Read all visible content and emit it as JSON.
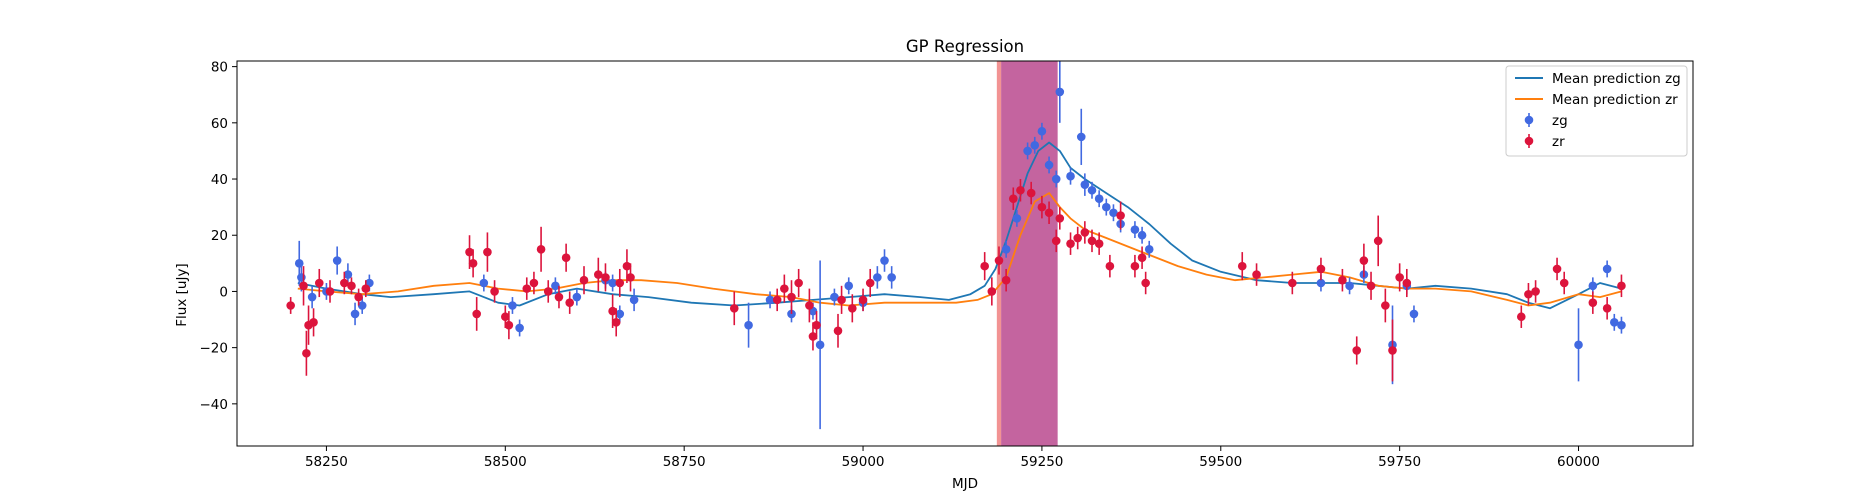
{
  "chart_data": {
    "type": "scatter",
    "title": "GP Regression",
    "xlabel": "MJD",
    "ylabel": "Flux [uJy]",
    "xlim": [
      58125,
      60160
    ],
    "ylim": [
      -55,
      82
    ],
    "xticks": [
      58250,
      58500,
      58750,
      59000,
      59250,
      59500,
      59750,
      60000
    ],
    "yticks": [
      -40,
      -20,
      0,
      20,
      40,
      60,
      80
    ],
    "grid": false,
    "legend_position": "top-right",
    "legend": [
      {
        "label": "Mean prediction zg",
        "kind": "line",
        "color": "#1f77b4"
      },
      {
        "label": "Mean prediction zr",
        "kind": "line",
        "color": "#ff7f0e"
      },
      {
        "label": "zg",
        "kind": "errorbar",
        "color": "#4169e1"
      },
      {
        "label": "zr",
        "kind": "errorbar",
        "color": "#dc143c"
      }
    ],
    "shaded_regions": [
      {
        "x0": 59187,
        "x1": 59193,
        "color": "#f08080",
        "opacity": 0.85
      },
      {
        "x0": 59193,
        "x1": 59272,
        "color": "#b0307f",
        "opacity": 0.75
      }
    ],
    "series": [
      {
        "name": "Mean prediction zg",
        "kind": "line",
        "color": "#1f77b4",
        "x": [
          58210,
          58250,
          58300,
          58340,
          58400,
          58450,
          58490,
          58520,
          58560,
          58600,
          58650,
          58700,
          58760,
          58820,
          58880,
          58930,
          58980,
          59030,
          59080,
          59120,
          59150,
          59170,
          59185,
          59200,
          59215,
          59230,
          59245,
          59260,
          59275,
          59290,
          59310,
          59340,
          59370,
          59400,
          59430,
          59460,
          59500,
          59550,
          59600,
          59640,
          59680,
          59720,
          59760,
          59800,
          59850,
          59900,
          59930,
          59960,
          60000,
          60030,
          60060
        ],
        "y": [
          3,
          1,
          -1,
          -2,
          -1,
          0,
          -4,
          -5,
          -1,
          1,
          -1,
          -2,
          -4,
          -5,
          -4,
          -3,
          -2,
          -1,
          -2,
          -3,
          -1,
          2,
          8,
          18,
          30,
          42,
          50,
          53,
          50,
          44,
          40,
          35,
          30,
          24,
          17,
          11,
          7,
          4,
          3,
          3,
          3,
          2,
          1,
          2,
          1,
          -1,
          -4,
          -6,
          -1,
          3,
          1
        ]
      },
      {
        "name": "Mean prediction zr",
        "kind": "line",
        "color": "#ff7f0e",
        "x": [
          58210,
          58250,
          58300,
          58350,
          58400,
          58450,
          58490,
          58530,
          58570,
          58610,
          58650,
          58690,
          58740,
          58790,
          58850,
          58900,
          58940,
          58980,
          59030,
          59080,
          59130,
          59160,
          59180,
          59200,
          59220,
          59240,
          59260,
          59275,
          59290,
          59310,
          59340,
          59370,
          59400,
          59440,
          59480,
          59520,
          59560,
          59600,
          59640,
          59680,
          59720,
          59760,
          59800,
          59850,
          59900,
          59930,
          59960,
          60000,
          60030,
          60060
        ],
        "y": [
          1,
          0,
          -1,
          0,
          2,
          3,
          1,
          0,
          1,
          3,
          4,
          4,
          3,
          1,
          -1,
          -2,
          -4,
          -5,
          -4,
          -4,
          -4,
          -3,
          -1,
          5,
          20,
          32,
          35,
          30,
          26,
          22,
          19,
          16,
          13,
          9,
          6,
          4,
          5,
          6,
          7,
          5,
          2,
          1,
          1,
          0,
          -3,
          -5,
          -4,
          -1,
          -2,
          0
        ]
      },
      {
        "name": "zg",
        "kind": "errorbar",
        "color": "#4169e1",
        "x": [
          58212,
          58215,
          58230,
          58250,
          58265,
          58280,
          58290,
          58300,
          58310,
          58470,
          58510,
          58520,
          58570,
          58600,
          58640,
          58650,
          58660,
          58680,
          58840,
          58870,
          58900,
          58930,
          58940,
          58960,
          58980,
          59000,
          59020,
          59030,
          59040,
          59200,
          59215,
          59230,
          59240,
          59250,
          59260,
          59270,
          59275,
          59290,
          59305,
          59310,
          59320,
          59330,
          59340,
          59350,
          59360,
          59380,
          59390,
          59400,
          59640,
          59680,
          59700,
          59740,
          59760,
          59770,
          60000,
          60020,
          60040,
          60050,
          60060
        ],
        "y": [
          10,
          5,
          -2,
          0,
          11,
          6,
          -8,
          -5,
          3,
          3,
          -5,
          -13,
          2,
          -2,
          4,
          3,
          -8,
          -3,
          -12,
          -3,
          -8,
          -7,
          -19,
          -2,
          2,
          -4,
          5,
          11,
          5,
          15,
          26,
          50,
          52,
          57,
          45,
          40,
          71,
          41,
          55,
          38,
          36,
          33,
          30,
          28,
          24,
          22,
          20,
          15,
          3,
          2,
          6,
          -19,
          2,
          -8,
          -19,
          2,
          8,
          -11,
          -12
        ],
        "err": [
          8,
          5,
          4,
          3,
          5,
          4,
          4,
          3,
          3,
          3,
          3,
          3,
          3,
          3,
          3,
          3,
          3,
          4,
          8,
          3,
          3,
          3,
          30,
          3,
          3,
          3,
          4,
          4,
          4,
          3,
          3,
          3,
          3,
          3,
          3,
          3,
          11,
          3,
          10,
          4,
          3,
          3,
          3,
          3,
          3,
          3,
          3,
          3,
          3,
          3,
          3,
          14,
          3,
          3,
          13,
          3,
          3,
          3,
          3
        ]
      },
      {
        "name": "zr",
        "kind": "errorbar",
        "color": "#dc143c",
        "x": [
          58200,
          58218,
          58222,
          58225,
          58232,
          58240,
          58255,
          58275,
          58285,
          58295,
          58305,
          58450,
          58455,
          58460,
          58475,
          58485,
          58500,
          58505,
          58530,
          58540,
          58550,
          58560,
          58575,
          58585,
          58590,
          58610,
          58630,
          58640,
          58650,
          58655,
          58660,
          58670,
          58675,
          58820,
          58880,
          58890,
          58900,
          58910,
          58925,
          58930,
          58935,
          58965,
          58970,
          58985,
          59000,
          59010,
          59170,
          59180,
          59190,
          59200,
          59210,
          59220,
          59235,
          59250,
          59260,
          59270,
          59275,
          59290,
          59300,
          59310,
          59320,
          59330,
          59345,
          59360,
          59380,
          59390,
          59395,
          59530,
          59550,
          59600,
          59640,
          59670,
          59690,
          59700,
          59710,
          59720,
          59730,
          59740,
          59750,
          59760,
          59920,
          59930,
          59940,
          59970,
          59980,
          60020,
          60040,
          60060
        ],
        "y": [
          -5,
          2,
          -22,
          -12,
          -11,
          3,
          0,
          3,
          2,
          -2,
          1,
          14,
          10,
          -8,
          14,
          0,
          -9,
          -12,
          1,
          3,
          15,
          0,
          -2,
          12,
          -4,
          4,
          6,
          5,
          -7,
          -11,
          3,
          9,
          5,
          -6,
          -3,
          1,
          -2,
          3,
          -5,
          -16,
          -12,
          -14,
          -3,
          -6,
          -3,
          3,
          9,
          0,
          11,
          4,
          33,
          36,
          35,
          30,
          28,
          18,
          26,
          17,
          19,
          21,
          18,
          17,
          9,
          27,
          9,
          12,
          3,
          9,
          6,
          3,
          8,
          4,
          -21,
          11,
          2,
          18,
          -5,
          -21,
          5,
          3,
          -9,
          -1,
          0,
          8,
          3,
          -4,
          -6,
          2
        ],
        "err": [
          3,
          7,
          8,
          7,
          5,
          5,
          4,
          4,
          3,
          3,
          3,
          6,
          5,
          6,
          7,
          4,
          4,
          5,
          4,
          4,
          8,
          4,
          4,
          5,
          4,
          5,
          6,
          5,
          6,
          5,
          5,
          6,
          5,
          6,
          4,
          5,
          6,
          5,
          6,
          5,
          5,
          6,
          5,
          5,
          4,
          5,
          5,
          5,
          5,
          4,
          4,
          4,
          4,
          4,
          4,
          4,
          4,
          4,
          4,
          4,
          4,
          4,
          4,
          5,
          4,
          4,
          4,
          5,
          4,
          4,
          4,
          4,
          5,
          6,
          5,
          9,
          6,
          11,
          5,
          5,
          4,
          4,
          4,
          4,
          4,
          4,
          4,
          4
        ]
      }
    ]
  }
}
